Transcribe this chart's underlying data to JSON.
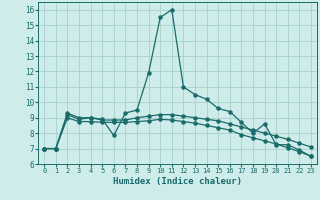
{
  "xlabel": "Humidex (Indice chaleur)",
  "background_color": "#ceecea",
  "grid_color": "#aed4d2",
  "line_color": "#1a6b6b",
  "xlim": [
    -0.5,
    23.5
  ],
  "ylim": [
    6,
    16.5
  ],
  "xticks": [
    0,
    1,
    2,
    3,
    4,
    5,
    6,
    7,
    8,
    9,
    10,
    11,
    12,
    13,
    14,
    15,
    16,
    17,
    18,
    19,
    20,
    21,
    22,
    23
  ],
  "yticks": [
    6,
    7,
    8,
    9,
    10,
    11,
    12,
    13,
    14,
    15,
    16
  ],
  "curve1_x": [
    0,
    1,
    2,
    3,
    4,
    5,
    6,
    7,
    8,
    9,
    10,
    11,
    12,
    13,
    14,
    15,
    16,
    17,
    18,
    19,
    20,
    21,
    22,
    23
  ],
  "curve1_y": [
    7.0,
    7.0,
    9.3,
    9.0,
    9.0,
    8.9,
    7.85,
    9.3,
    9.5,
    11.9,
    15.5,
    16.0,
    11.0,
    10.5,
    10.2,
    9.6,
    9.4,
    8.7,
    8.0,
    8.6,
    7.25,
    7.25,
    6.9,
    6.5
  ],
  "curve2_x": [
    0,
    1,
    2,
    3,
    4,
    5,
    6,
    7,
    8,
    9,
    10,
    11,
    12,
    13,
    14,
    15,
    16,
    17,
    18,
    19,
    20,
    21,
    22,
    23
  ],
  "curve2_y": [
    7.0,
    7.0,
    9.2,
    8.9,
    9.0,
    8.85,
    8.85,
    8.85,
    9.0,
    9.1,
    9.2,
    9.2,
    9.1,
    9.0,
    8.9,
    8.8,
    8.6,
    8.4,
    8.2,
    8.0,
    7.8,
    7.6,
    7.35,
    7.1
  ],
  "curve3_x": [
    0,
    1,
    2,
    3,
    4,
    5,
    6,
    7,
    8,
    9,
    10,
    11,
    12,
    13,
    14,
    15,
    16,
    17,
    18,
    19,
    20,
    21,
    22,
    23
  ],
  "curve3_y": [
    7.0,
    7.0,
    9.0,
    8.75,
    8.75,
    8.7,
    8.7,
    8.7,
    8.75,
    8.8,
    8.9,
    8.85,
    8.75,
    8.65,
    8.5,
    8.35,
    8.2,
    7.9,
    7.7,
    7.5,
    7.3,
    7.05,
    6.8,
    6.5
  ]
}
